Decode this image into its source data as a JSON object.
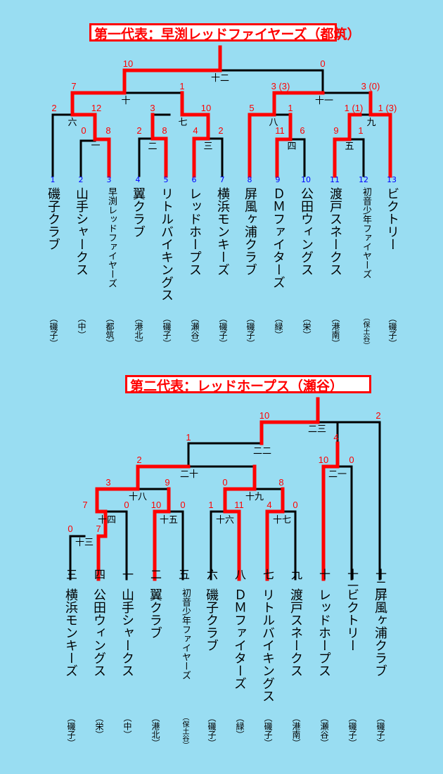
{
  "brackets": [
    {
      "title": "第一代表：早渕レッドファイヤーズ（都筑）",
      "teams": [
        {
          "no": "1",
          "name": "磯子クラブ",
          "region": "（磯子）"
        },
        {
          "no": "2",
          "name": "山手シャークス",
          "region": "（中）"
        },
        {
          "no": "3",
          "name": "早渕レッドファイヤーズ",
          "region": "（都筑）"
        },
        {
          "no": "4",
          "name": "翼クラブ",
          "region": "（港北）"
        },
        {
          "no": "5",
          "name": "リトルバイキングス",
          "region": "（磯子）"
        },
        {
          "no": "6",
          "name": "レッドホープス",
          "region": "（瀬谷）"
        },
        {
          "no": "7",
          "name": "横浜モンキーズ",
          "region": "（磯子）"
        },
        {
          "no": "8",
          "name": "屏風ヶ浦クラブ",
          "region": "（磯子）"
        },
        {
          "no": "9",
          "name": "ＤＭファイターズ",
          "region": "（緑）"
        },
        {
          "no": "10",
          "name": "公田ウィングス",
          "region": "（栄）"
        },
        {
          "no": "11",
          "name": "渡戸スネークス",
          "region": "（港南）"
        },
        {
          "no": "12",
          "name": "初音少年ファイヤーズ",
          "region": "（保土谷）"
        },
        {
          "no": "13",
          "name": "ビクトリー",
          "region": "（磯子）"
        }
      ],
      "scores": [
        "10",
        "0",
        "7",
        "1",
        "3 (3)",
        "3 (0)",
        "2",
        "12",
        "3",
        "10",
        "5",
        "1",
        "1 (1)",
        "1 (3)",
        "0",
        "8",
        "2",
        "8",
        "4",
        "2",
        "11",
        "6",
        "9",
        "1"
      ],
      "game_labels": [
        "十二",
        "十",
        "七",
        "八",
        "十一",
        "九",
        "六",
        "一",
        "二",
        "三",
        "四",
        "五"
      ]
    },
    {
      "title": "第二代表：レッドホープス（瀬谷）",
      "teams": [
        {
          "seed": "三",
          "name": "横浜モンキーズ",
          "region": "（磯子）"
        },
        {
          "seed": "四",
          "name": "公田ウィングス",
          "region": "（栄）"
        },
        {
          "seed": "一",
          "name": "山手シャークス",
          "region": "（中）"
        },
        {
          "seed": "二",
          "name": "翼クラブ",
          "region": "（港北）"
        },
        {
          "seed": "五",
          "name": "初音少年ファイヤーズ",
          "region": "（保土谷）"
        },
        {
          "seed": "六",
          "name": "磯子クラブ",
          "region": "（磯子）"
        },
        {
          "seed": "八",
          "name": "ＤＭファイターズ",
          "region": "（緑）"
        },
        {
          "seed": "七",
          "name": "リトルバイキングス",
          "region": "（磯子）"
        },
        {
          "seed": "九",
          "name": "渡戸スネークス",
          "region": "（港南）"
        },
        {
          "seed": "十",
          "name": "レッドホープス",
          "region": "（瀬谷）"
        },
        {
          "seed": "十一",
          "name": "ビクトリー",
          "region": "（磯子）"
        },
        {
          "seed": "十二",
          "name": "屏風ヶ浦クラブ",
          "region": "（磯子）"
        }
      ],
      "scores": [
        "10",
        "2",
        "1",
        "4",
        "2",
        "9",
        "0",
        "8",
        "10",
        "0",
        "3",
        "7",
        "0",
        "10",
        "0",
        "1",
        "11",
        "4",
        "0",
        "0",
        "7"
      ],
      "game_labels": [
        "二三",
        "二二",
        "二十",
        "十八",
        "十九",
        "二一",
        "十四",
        "十五",
        "十六",
        "十七",
        "十三"
      ]
    }
  ],
  "colors": {
    "background": "#99ddf2",
    "winner_line": "#ff0000",
    "line": "#000000",
    "score": "#ff0000",
    "team_no": "#0000ff"
  }
}
